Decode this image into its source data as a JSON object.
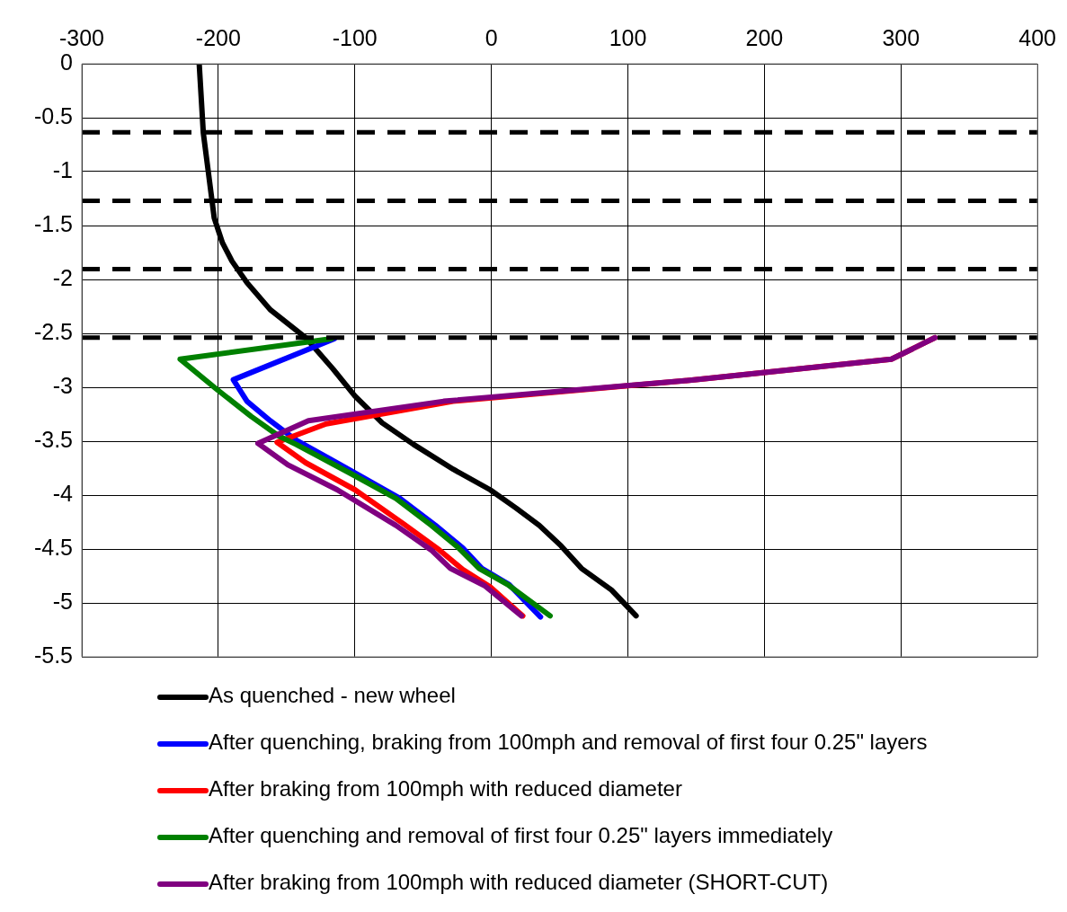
{
  "chart_data": {
    "type": "line",
    "xlim": [
      -300,
      400
    ],
    "xticks": [
      -300,
      -200,
      -100,
      0,
      100,
      200,
      300,
      400
    ],
    "ylim": [
      -5.5,
      0
    ],
    "yticks": [
      0,
      -0.5,
      -1,
      -1.5,
      -2,
      -2.5,
      -3,
      -3.5,
      -4,
      -4.5,
      -5,
      -5.5
    ],
    "grid": true,
    "legend": "bottom",
    "marker": "none",
    "line_style": "solid",
    "series": [
      {
        "name": "As quenched - new wheel",
        "color": "#000000",
        "x": [
          -214,
          -211,
          -203,
          -197,
          -190,
          -179,
          -162,
          -136,
          -116,
          -100,
          -80,
          -57,
          -28,
          -1,
          18,
          35,
          51,
          66,
          88,
          106
        ],
        "values": [
          0,
          -0.64,
          -1.43,
          -1.66,
          -1.83,
          -2.03,
          -2.28,
          -2.54,
          -2.83,
          -3.08,
          -3.33,
          -3.53,
          -3.76,
          -3.95,
          -4.12,
          -4.28,
          -4.47,
          -4.68,
          -4.88,
          -5.12
        ]
      },
      {
        "name": "After quenching, braking from 100mph and removal of first four 0.25\" layers",
        "color": "#0000ff",
        "x": [
          -115,
          -189,
          -179,
          -162,
          -143,
          -99,
          -67,
          -41,
          -21,
          -7,
          13,
          36
        ],
        "values": [
          -2.55,
          -2.93,
          -3.13,
          -3.31,
          -3.49,
          -3.8,
          -4.03,
          -4.28,
          -4.49,
          -4.68,
          -4.83,
          -5.13
        ]
      },
      {
        "name": "After braking from 100mph with reduced diameter",
        "color": "#ff0000",
        "x": [
          325,
          293,
          150,
          -28,
          -121,
          -157,
          -136,
          -100,
          -64,
          -38,
          -21,
          -1,
          23
        ],
        "values": [
          -2.54,
          -2.74,
          -2.93,
          -3.13,
          -3.34,
          -3.51,
          -3.7,
          -3.95,
          -4.27,
          -4.51,
          -4.69,
          -4.85,
          -5.12
        ]
      },
      {
        "name": "After quenching and removal of first four 0.25\" layers immediately",
        "color": "#008000",
        "x": [
          -117,
          -228,
          -202,
          -176,
          -156,
          -143,
          -103,
          -70,
          -44,
          -24,
          -9,
          12,
          43
        ],
        "values": [
          -2.55,
          -2.74,
          -3.01,
          -3.27,
          -3.45,
          -3.53,
          -3.8,
          -4.03,
          -4.28,
          -4.49,
          -4.68,
          -4.83,
          -5.12
        ]
      },
      {
        "name": "After braking from 100mph with reduced diameter (SHORT-CUT)",
        "color": "#800080",
        "x": [
          325,
          293,
          150,
          -35,
          -134,
          -171,
          -149,
          -113,
          -70,
          -44,
          -30,
          -5,
          22
        ],
        "values": [
          -2.54,
          -2.74,
          -2.93,
          -3.13,
          -3.31,
          -3.52,
          -3.72,
          -3.95,
          -4.28,
          -4.51,
          -4.68,
          -4.84,
          -5.12
        ]
      }
    ],
    "ref_lines": [
      {
        "axis": "y",
        "value": -0.635,
        "color": "#000000",
        "line_style": "dashed"
      },
      {
        "axis": "y",
        "value": -1.27,
        "color": "#000000",
        "line_style": "dashed"
      },
      {
        "axis": "y",
        "value": -1.905,
        "color": "#000000",
        "line_style": "dashed"
      },
      {
        "axis": "y",
        "value": -2.54,
        "color": "#000000",
        "line_style": "dashed"
      }
    ]
  }
}
